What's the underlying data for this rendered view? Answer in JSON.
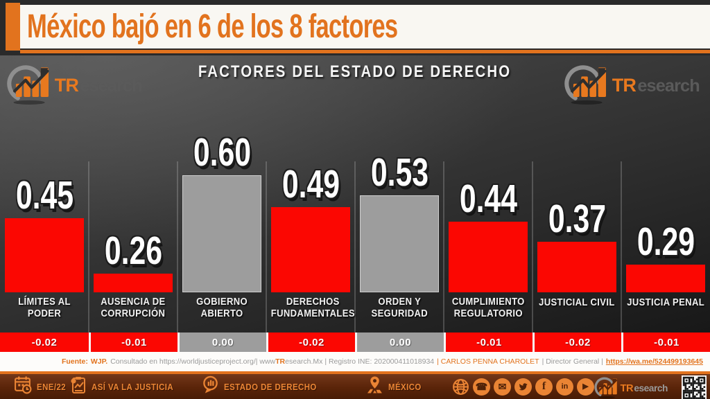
{
  "header": {
    "title": "México bajó en 6 de los 8 factores"
  },
  "brand": {
    "tr": "TR",
    "rest": "esearch"
  },
  "colors": {
    "accent_orange": "#e2731e",
    "bar_red": "#fb0702",
    "bar_gray": "#9d9d9d"
  },
  "chart": {
    "title": "FACTORES DEL ESTADO DE DERECHO"
  },
  "chart_data": {
    "type": "bar",
    "title": "FACTORES DEL ESTADO DE DERECHO",
    "categories": [
      "LÍMITES AL PODER",
      "AUSENCIA DE CORRUPCIÓN",
      "GOBIERNO ABIERTO",
      "DERECHOS FUNDAMENTALES",
      "ORDEN Y SEGURIDAD",
      "CUMPLIMIENTO REGULATORIO",
      "JUSTICIAL CIVIL",
      "JUSTICIA PENAL"
    ],
    "category_lines": [
      [
        "LÍMITES AL",
        "PODER"
      ],
      [
        "AUSENCIA DE",
        "CORRUPCIÓN"
      ],
      [
        "GOBIERNO",
        "ABIERTO"
      ],
      [
        "DERECHOS",
        "FUNDAMENTALES"
      ],
      [
        "ORDEN Y",
        "SEGURIDAD"
      ],
      [
        "CUMPLIMIENTO",
        "REGULATORIO"
      ],
      [
        "JUSTICIAL CIVIL"
      ],
      [
        "JUSTICIA PENAL"
      ]
    ],
    "values": [
      0.45,
      0.26,
      0.6,
      0.49,
      0.53,
      0.44,
      0.37,
      0.29
    ],
    "display_values": [
      "0.45",
      "0.26",
      "0.60",
      "0.49",
      "0.53",
      "0.44",
      "0.37",
      "0.29"
    ],
    "changes": [
      -0.02,
      -0.01,
      0.0,
      -0.02,
      0.0,
      -0.01,
      -0.02,
      -0.01
    ],
    "display_changes": [
      "-0.02",
      "-0.01",
      "0.00",
      "-0.02",
      "0.00",
      "-0.01",
      "-0.02",
      "-0.01"
    ],
    "bar_colors": [
      "red",
      "red",
      "gray",
      "red",
      "gray",
      "red",
      "red",
      "red"
    ],
    "colors": {
      "red": "#fb0702",
      "gray": "#9d9d9d"
    },
    "xlabel": "",
    "ylabel": "",
    "ylim": [
      0.19,
      0.65
    ],
    "grid": "vertical column dividers only",
    "legend": "none"
  },
  "footer": {
    "fuente_label": "Fuente:",
    "fuente_src": "WJP.",
    "consultado": "Consultado en https://worldjusticeproject.org/| www",
    "tr": "TR",
    "site_rest": "esearch.Mx | Registro INE: 202000411018934",
    "author": "| CARLOS PENNA CHAROLET",
    "role": "| Director General |",
    "whatsapp": "https://wa.me/524499193645"
  },
  "bottombar": {
    "date": "ENE/22",
    "program": "ASÍ VA LA JUSTICIA",
    "topic": "ESTADO DE DERECHO",
    "country": "MÉXICO",
    "social_icons": [
      "globe-icon",
      "phone-icon",
      "email-icon",
      "twitter-icon",
      "facebook-icon",
      "linkedin-icon",
      "youtube-icon"
    ],
    "qr": "qr-code"
  }
}
